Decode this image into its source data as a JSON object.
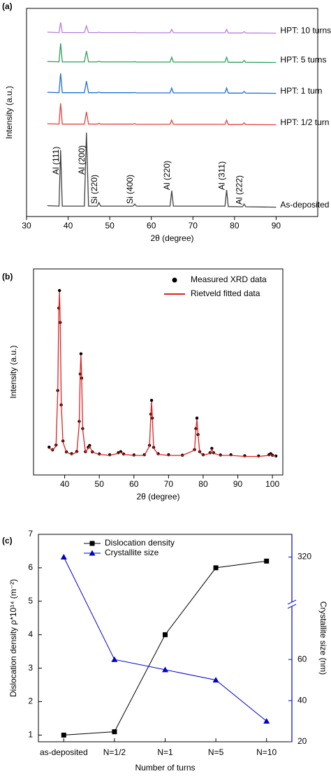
{
  "chart_data": [
    {
      "type": "line",
      "title": "(a)",
      "xlabel": "2θ (degree)",
      "ylabel": "Intensity (a.u.)",
      "xlim": [
        30,
        100
      ],
      "xticks": [
        30,
        40,
        50,
        60,
        70,
        80,
        90
      ],
      "ylim": [
        0,
        100
      ],
      "x": [
        35,
        37.8,
        38.2,
        38.6,
        43.9,
        44.4,
        44.9,
        47.0,
        47.4,
        47.8,
        55.6,
        56.0,
        56.4,
        64.5,
        64.9,
        65.3,
        77.7,
        78.1,
        78.5,
        81.9,
        82.3,
        82.7,
        90
      ],
      "series": [
        {
          "name": "As-deposited",
          "color": "#404040",
          "values": [
            5.2,
            5,
            31.9,
            5,
            5,
            40.3,
            5,
            5,
            6.7,
            5,
            5,
            6,
            5,
            5,
            12.4,
            5,
            5,
            12.8,
            4.8,
            4.7,
            6,
            4.7,
            4.5
          ]
        },
        {
          "name": "HPT: 1/2 turn",
          "color": "#e8413c",
          "values": [
            44.6,
            44.4,
            54.4,
            44.4,
            44.4,
            50.3,
            44.4,
            44.4,
            44.8,
            44.4,
            44.4,
            44.6,
            44.3,
            44.3,
            46.3,
            44.3,
            44.3,
            46.3,
            44.2,
            44.2,
            45,
            44.2,
            44.1
          ]
        },
        {
          "name": "HPT: 1 turn",
          "color": "#1f6fd6",
          "values": [
            59.7,
            59.5,
            68.8,
            59.5,
            59.5,
            65,
            59.5,
            59.5,
            59.8,
            59.5,
            59.5,
            59.6,
            59.4,
            59.4,
            61.7,
            59.4,
            59.4,
            61.7,
            59.3,
            59.3,
            60.1,
            59.3,
            59.2
          ]
        },
        {
          "name": "HPT: 5 turns",
          "color": "#2ca05a",
          "values": [
            74.5,
            74.3,
            83.2,
            74.3,
            74.3,
            79.5,
            74.3,
            74.3,
            74.6,
            74.3,
            74.3,
            74.4,
            74.2,
            74.2,
            76.5,
            74.2,
            74.2,
            76.5,
            74.1,
            74.1,
            75,
            74.1,
            74
          ]
        },
        {
          "name": "HPT: 10 turns",
          "color": "#b67fe0",
          "values": [
            88.6,
            88.4,
            93.3,
            88.4,
            88.4,
            91.6,
            88.4,
            88.4,
            88.6,
            88.4,
            88.4,
            88.5,
            88.3,
            88.3,
            89.9,
            88.3,
            88.3,
            89.9,
            88.2,
            88.2,
            88.9,
            88.2,
            88.1
          ]
        }
      ],
      "annotations": [
        {
          "text": "Al (111)",
          "x": 38.2
        },
        {
          "text": "Al (200)",
          "x": 44.4
        },
        {
          "text": "Si (220)",
          "x": 47.4
        },
        {
          "text": "Si (400)",
          "x": 56.0
        },
        {
          "text": "Al (220)",
          "x": 64.9
        },
        {
          "text": "Al (311)",
          "x": 78.1
        },
        {
          "text": "Al (222)",
          "x": 82.3
        }
      ]
    },
    {
      "type": "line",
      "title": "(b)",
      "xlabel": "2θ (degree)",
      "ylabel": "Intensity (a.u.)",
      "xlim": [
        31,
        103
      ],
      "xticks": [
        40,
        50,
        60,
        70,
        80,
        90,
        100
      ],
      "ylim": [
        0,
        100
      ],
      "legend": "upper right",
      "x": [
        35.5,
        36.5,
        37.5,
        38.0,
        38.3,
        38.5,
        38.7,
        39.0,
        39.5,
        40.5,
        42,
        43.5,
        44.2,
        44.5,
        44.7,
        44.9,
        45.2,
        46,
        46.8,
        47.2,
        48,
        50,
        53,
        55.5,
        56.2,
        57,
        60,
        63,
        64.5,
        64.9,
        65.1,
        65.3,
        65.7,
        67,
        70,
        74,
        77.5,
        77.9,
        78.2,
        78.5,
        79,
        80,
        82,
        82.5,
        83,
        85,
        88,
        92,
        96,
        99,
        99.5,
        100,
        101
      ],
      "series": [
        {
          "name": "Measured XRD data",
          "color": "#000000",
          "mode": "markers",
          "values": [
            13.5,
            12.2,
            14.5,
            41,
            81,
            89.5,
            74,
            34,
            16.5,
            11.2,
            10.3,
            11.4,
            26,
            49,
            58.8,
            47,
            22.5,
            11.3,
            13.4,
            14.3,
            11.2,
            10.2,
            9.8,
            10.8,
            11.3,
            10.2,
            9.7,
            9.8,
            14.4,
            29.5,
            36.2,
            27.6,
            13.4,
            10.3,
            9.8,
            9.6,
            12.3,
            22.5,
            27.6,
            19.6,
            11.3,
            9.8,
            10.8,
            12.9,
            10.8,
            9.7,
            9.8,
            9.3,
            9.2,
            9.8,
            10.3,
            9.6,
            9.2
          ]
        },
        {
          "name": "Rietveld fitted data",
          "color": "#e02020",
          "mode": "line",
          "values": [
            13,
            12,
            14,
            40,
            80,
            88.8,
            75,
            35,
            16,
            11,
            10,
            11,
            25,
            50,
            58.3,
            48,
            22,
            11,
            13,
            14,
            11,
            10,
            9.5,
            10.5,
            11,
            10,
            9.5,
            9.5,
            14,
            30,
            35.6,
            28,
            13,
            10,
            9.5,
            9.5,
            12,
            22,
            27,
            20,
            11,
            9.5,
            10.5,
            12.5,
            10.5,
            9.5,
            9.5,
            9,
            9,
            9.5,
            10,
            9.5,
            9
          ]
        }
      ]
    },
    {
      "type": "line",
      "title": "(c)",
      "xlabel": "Number of turns",
      "ylabel": "Dislocation density ρ*10¹⁴ (m⁻²)",
      "y2label": "Crystallite size (nm)",
      "categories": [
        "as-deposited",
        "N=1/2",
        "N=1",
        "N=5",
        "N=10"
      ],
      "ylim": [
        0.8,
        7
      ],
      "yticks": [
        1,
        2,
        3,
        4,
        5,
        6,
        7
      ],
      "y2lim": [
        20,
        330
      ],
      "y2break": [
        75,
        310
      ],
      "y2ticks": [
        20,
        40,
        60,
        320
      ],
      "y2color": "#0000cc",
      "legend": "upper left",
      "series": [
        {
          "name": "Dislocation density",
          "color": "#000000",
          "marker": "square",
          "values": [
            1.0,
            1.1,
            4.0,
            6.0,
            6.2
          ]
        },
        {
          "name": "Crystallite size",
          "color": "#0000cc",
          "marker": "triangle",
          "axis": "y2",
          "values": [
            320,
            60,
            55,
            50,
            30
          ]
        }
      ]
    }
  ]
}
